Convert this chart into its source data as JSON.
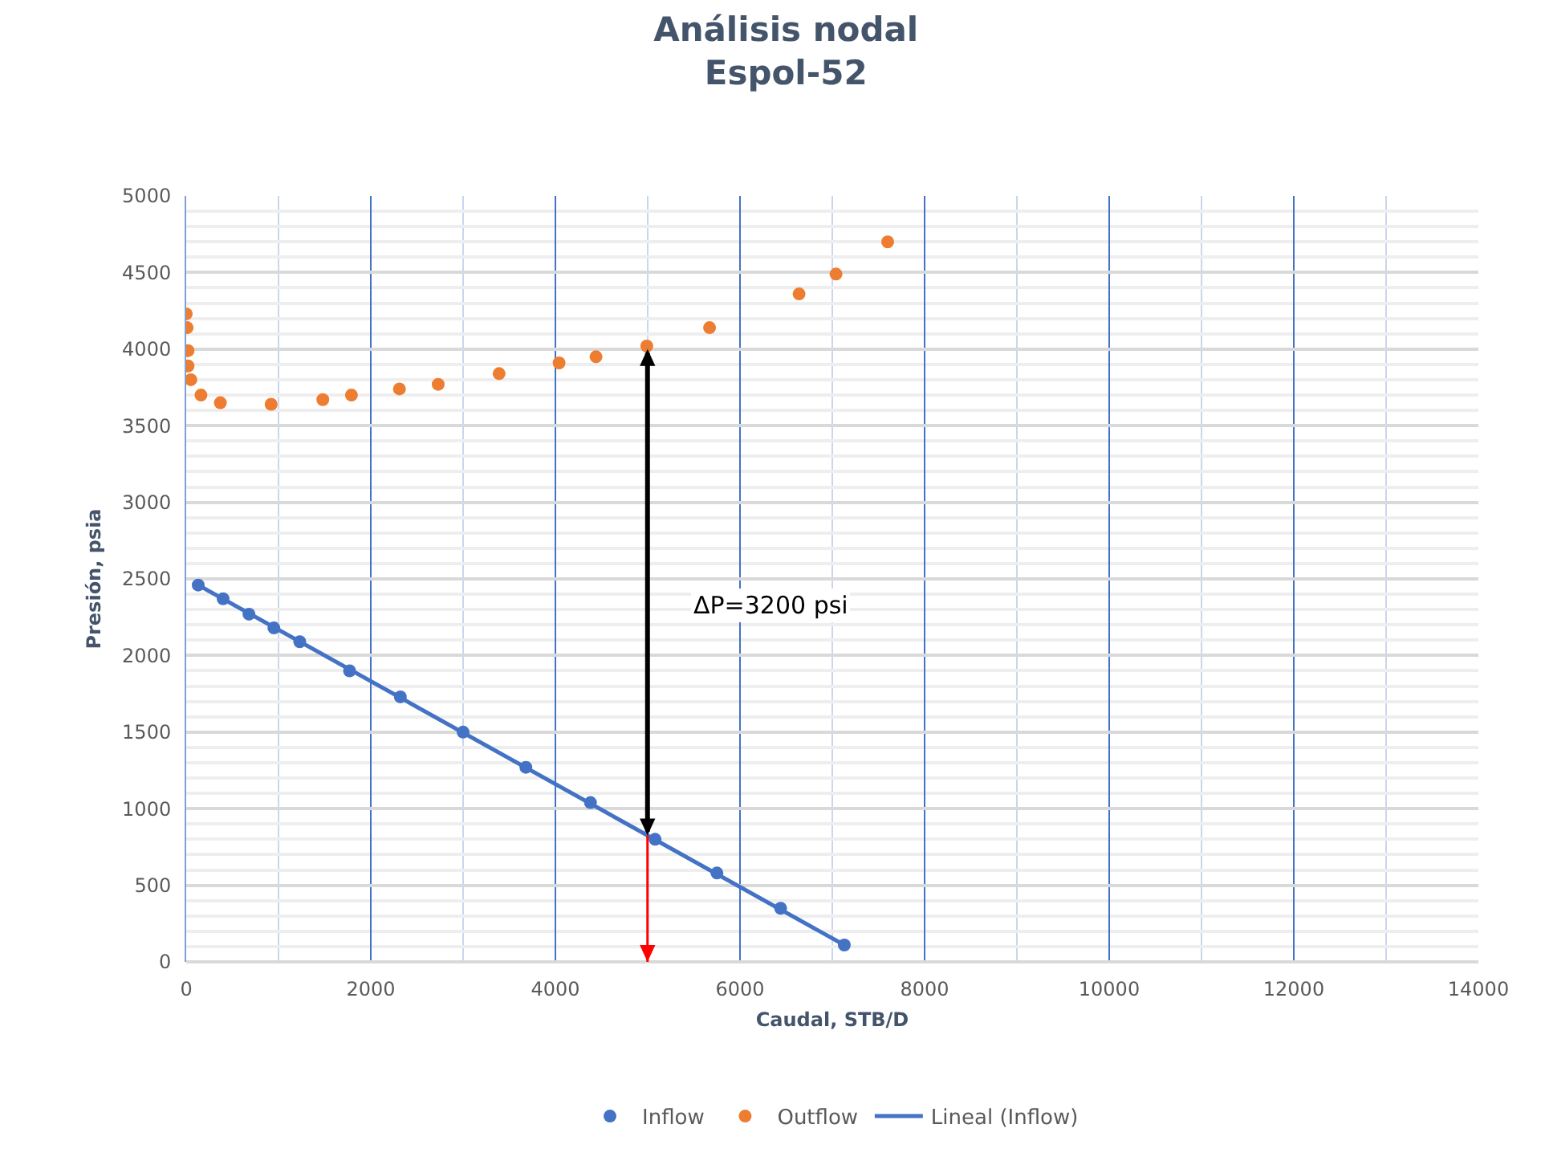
{
  "chart_data": {
    "type": "scatter",
    "title": "Análisis nodal",
    "subtitle": "Espol-52",
    "xlabel": "Caudal, STB/D",
    "ylabel": "Presión, psia",
    "series": [
      {
        "name": "Inflow",
        "color": "#4472c4",
        "x": [
          130,
          400,
          680,
          950,
          1230,
          1770,
          2320,
          3000,
          3680,
          4380,
          5080,
          5750,
          6440,
          7130
        ],
        "values": [
          2460,
          2370,
          2270,
          2180,
          2090,
          1900,
          1730,
          1500,
          1270,
          1040,
          800,
          580,
          350,
          110
        ]
      },
      {
        "name": "Outflow",
        "color": "#ed7d31",
        "x": [
          0,
          10,
          20,
          20,
          50,
          160,
          370,
          920,
          1480,
          1790,
          2310,
          2730,
          3390,
          4040,
          4440,
          4990,
          5670,
          6640,
          7040,
          7600
        ],
        "values": [
          4230,
          4140,
          3990,
          3890,
          3800,
          3700,
          3650,
          3640,
          3670,
          3700,
          3740,
          3770,
          3840,
          3910,
          3950,
          4020,
          4140,
          4360,
          4490,
          4700
        ]
      },
      {
        "name": "Lineal (Inflow)",
        "type": "line",
        "marker": "none",
        "color": "#4472c4",
        "x": [
          130,
          7130
        ],
        "values": [
          2460,
          110
        ]
      }
    ],
    "xlim": [
      0,
      14000
    ],
    "xticks": [
      0,
      2000,
      4000,
      6000,
      8000,
      10000,
      12000,
      14000
    ],
    "ylim": [
      0,
      5000
    ],
    "yticks": [
      0,
      500,
      1000,
      1500,
      2000,
      2500,
      3000,
      3500,
      4000,
      4500,
      5000
    ],
    "annotations": [
      "ΔP=3200 psi"
    ],
    "grid": true,
    "legend": "bottom",
    "marker": "circle"
  }
}
